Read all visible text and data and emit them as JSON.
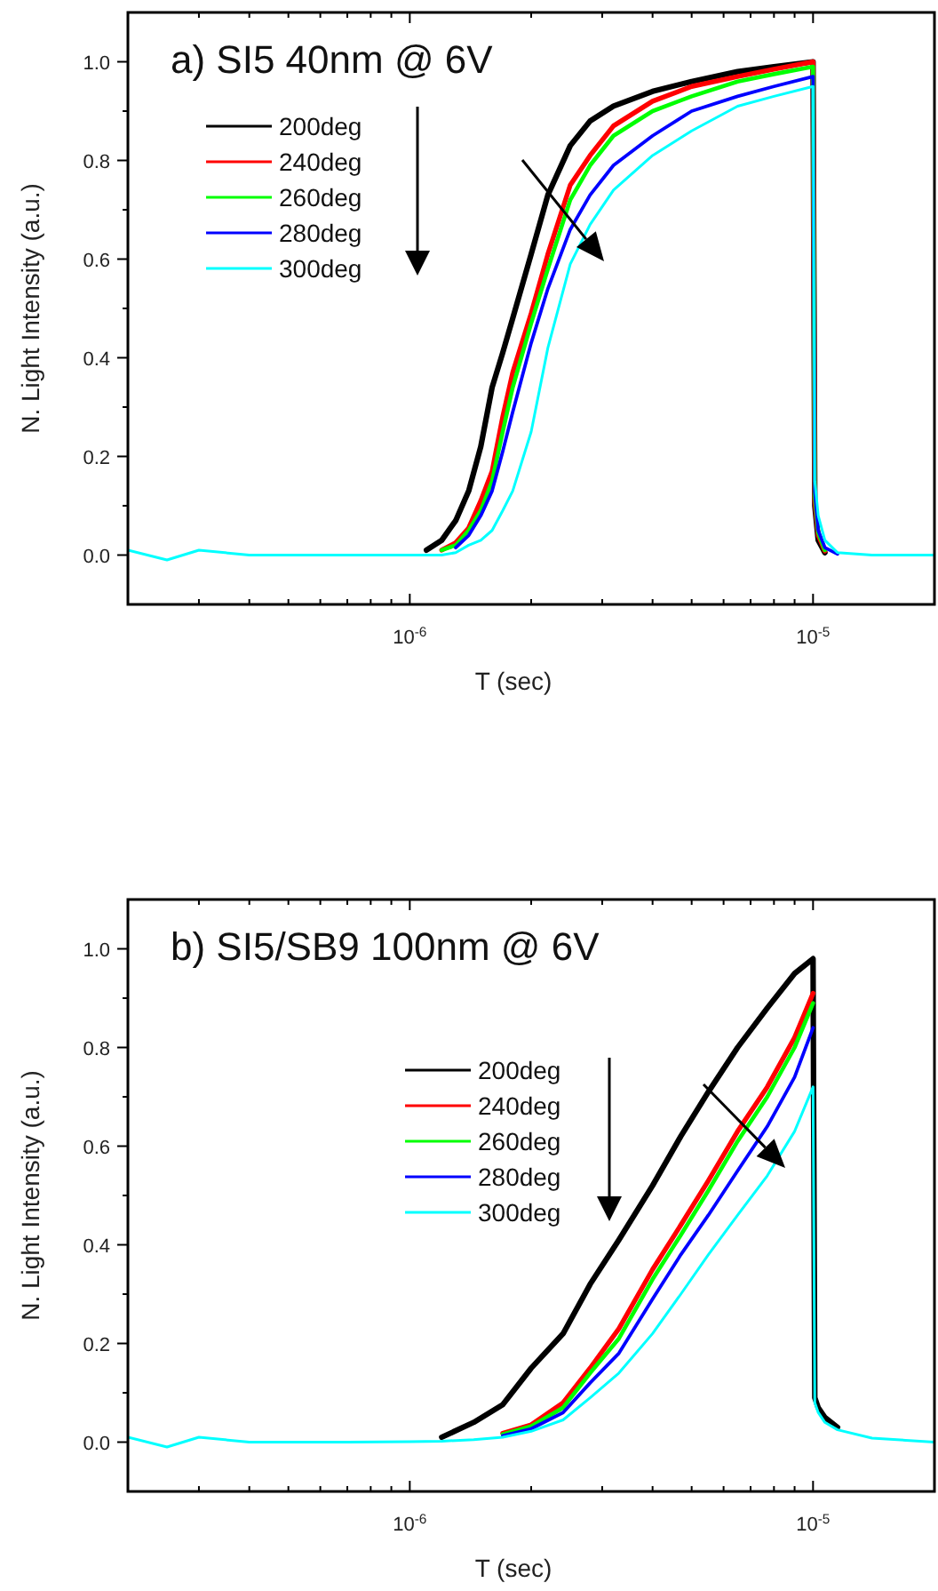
{
  "chart_data": [
    {
      "type": "line",
      "title": "a) SI5 40nm @ 6V",
      "xlabel": "T (sec)",
      "ylabel": "N. Light Intensity (a.u.)",
      "log": "x",
      "legend": "top left",
      "grid": false,
      "marker": "none",
      "line_style": "solid",
      "xlim": [
        2e-07,
        2e-05
      ],
      "ylim": [
        -0.1,
        1.1
      ],
      "xticks": [
        {
          "value": 3e-07,
          "label": null
        },
        {
          "value": 4e-07,
          "label": null
        },
        {
          "value": 5e-07,
          "label": null
        },
        {
          "value": 6e-07,
          "label": null
        },
        {
          "value": 7e-07,
          "label": null
        },
        {
          "value": 8e-07,
          "label": null
        },
        {
          "value": 9e-07,
          "label": null
        },
        {
          "value": 1e-06,
          "label": "10$^{-6}$"
        },
        {
          "value": 2e-06,
          "label": null
        },
        {
          "value": 3e-06,
          "label": null
        },
        {
          "value": 4e-06,
          "label": null
        },
        {
          "value": 5e-06,
          "label": null
        },
        {
          "value": 6e-06,
          "label": null
        },
        {
          "value": 7e-06,
          "label": null
        },
        {
          "value": 8e-06,
          "label": null
        },
        {
          "value": 9e-06,
          "label": null
        },
        {
          "value": 1e-05,
          "label": "10$^{-5}$"
        }
      ],
      "yticks": [
        {
          "value": 0,
          "label": "0.0"
        },
        {
          "value": 0.1,
          "label": null
        },
        {
          "value": 0.2,
          "label": "0.2"
        },
        {
          "value": 0.3,
          "label": null
        },
        {
          "value": 0.4,
          "label": "0.4"
        },
        {
          "value": 0.5,
          "label": null
        },
        {
          "value": 0.6,
          "label": "0.6"
        },
        {
          "value": 0.7,
          "label": null
        },
        {
          "value": 0.8,
          "label": "0.8"
        },
        {
          "value": 0.9,
          "label": null
        },
        {
          "value": 1,
          "label": "1.0"
        }
      ],
      "x": [
        2e-07,
        2.5e-07,
        3e-07,
        4e-07,
        5e-07,
        7e-07,
        1e-06,
        1.1e-06,
        1.2e-06,
        1.3e-06,
        1.4e-06,
        1.5e-06,
        1.6e-06,
        1.7e-06,
        1.8e-06,
        2e-06,
        2.2e-06,
        2.5e-06,
        2.8e-06,
        3.2e-06,
        4e-06,
        5e-06,
        6.5e-06,
        8e-06,
        1e-05,
        1.01e-05,
        1.03e-05,
        1.07e-05,
        1.15e-05,
        1.4e-05,
        2e-05
      ],
      "series": [
        {
          "name": "200deg",
          "color": "#000000",
          "values": [
            null,
            null,
            null,
            null,
            null,
            null,
            null,
            0.01,
            0.03,
            0.07,
            0.13,
            0.22,
            0.34,
            0.41,
            0.48,
            0.61,
            0.73,
            0.83,
            0.88,
            0.91,
            0.94,
            0.96,
            0.98,
            0.99,
            1.0,
            0.1,
            0.03,
            0.005,
            null,
            null,
            null
          ]
        },
        {
          "name": "240deg",
          "color": "#ff0000",
          "values": [
            null,
            null,
            null,
            null,
            null,
            null,
            null,
            null,
            0.01,
            0.025,
            0.055,
            0.11,
            0.17,
            0.28,
            0.37,
            0.49,
            0.61,
            0.75,
            0.81,
            0.87,
            0.92,
            0.95,
            0.97,
            0.985,
            1.0,
            0.11,
            0.04,
            0.008,
            null,
            null,
            null
          ]
        },
        {
          "name": "260deg",
          "color": "#00ff00",
          "values": [
            null,
            null,
            null,
            null,
            null,
            null,
            null,
            null,
            0.01,
            0.02,
            0.05,
            0.09,
            0.15,
            0.25,
            0.34,
            0.47,
            0.58,
            0.72,
            0.79,
            0.85,
            0.9,
            0.93,
            0.96,
            0.975,
            0.99,
            0.12,
            0.045,
            0.01,
            null,
            null,
            null
          ]
        },
        {
          "name": "280deg",
          "color": "#0000ff",
          "values": [
            null,
            null,
            null,
            null,
            null,
            null,
            null,
            null,
            null,
            0.015,
            0.04,
            0.08,
            0.13,
            0.21,
            0.29,
            0.43,
            0.54,
            0.66,
            0.73,
            0.79,
            0.85,
            0.9,
            0.93,
            0.95,
            0.97,
            0.13,
            0.05,
            0.015,
            0.002,
            null,
            null
          ]
        },
        {
          "name": "300deg",
          "color": "#00ffff",
          "values": [
            0.01,
            -0.01,
            0.01,
            0,
            0,
            0,
            0,
            0,
            0,
            0.005,
            0.02,
            0.03,
            0.05,
            0.09,
            0.13,
            0.25,
            0.42,
            0.59,
            0.67,
            0.74,
            0.81,
            0.86,
            0.91,
            0.93,
            0.95,
            0.15,
            0.08,
            0.03,
            0.005,
            0,
            0
          ]
        }
      ]
    },
    {
      "type": "line",
      "title": "b) SI5/SB9 100nm @ 6V",
      "xlabel": "T (sec)",
      "ylabel": "N. Light Intensity (a.u.)",
      "log": "x",
      "legend": "top",
      "grid": false,
      "marker": "none",
      "line_style": "solid",
      "xlim": [
        2e-07,
        2e-05
      ],
      "ylim": [
        -0.1,
        1.1
      ],
      "xticks": [
        {
          "value": 3e-07,
          "label": null
        },
        {
          "value": 4e-07,
          "label": null
        },
        {
          "value": 5e-07,
          "label": null
        },
        {
          "value": 6e-07,
          "label": null
        },
        {
          "value": 7e-07,
          "label": null
        },
        {
          "value": 8e-07,
          "label": null
        },
        {
          "value": 9e-07,
          "label": null
        },
        {
          "value": 1e-06,
          "label": "10$^{-6}$"
        },
        {
          "value": 2e-06,
          "label": null
        },
        {
          "value": 3e-06,
          "label": null
        },
        {
          "value": 4e-06,
          "label": null
        },
        {
          "value": 5e-06,
          "label": null
        },
        {
          "value": 6e-06,
          "label": null
        },
        {
          "value": 7e-06,
          "label": null
        },
        {
          "value": 8e-06,
          "label": null
        },
        {
          "value": 9e-06,
          "label": null
        },
        {
          "value": 1e-05,
          "label": "10$^{-5}$"
        }
      ],
      "yticks": [
        {
          "value": 0,
          "label": "0.0"
        },
        {
          "value": 0.1,
          "label": null
        },
        {
          "value": 0.2,
          "label": "0.2"
        },
        {
          "value": 0.3,
          "label": null
        },
        {
          "value": 0.4,
          "label": "0.4"
        },
        {
          "value": 0.5,
          "label": null
        },
        {
          "value": 0.6,
          "label": "0.6"
        },
        {
          "value": 0.7,
          "label": null
        },
        {
          "value": 0.8,
          "label": "0.8"
        },
        {
          "value": 0.9,
          "label": null
        },
        {
          "value": 1,
          "label": "1.0"
        }
      ],
      "x": [
        2e-07,
        2.5e-07,
        3e-07,
        4e-07,
        5e-07,
        7e-07,
        1e-06,
        1.2e-06,
        1.44e-06,
        1.7e-06,
        2e-06,
        2.4e-06,
        2.8e-06,
        3.3e-06,
        4e-06,
        4.7e-06,
        5.5e-06,
        6.5e-06,
        7.7e-06,
        9e-06,
        1e-05,
        1.01e-05,
        1.03e-05,
        1.07e-05,
        1.15e-05,
        1.4e-05,
        2e-05
      ],
      "series": [
        {
          "name": "200deg",
          "color": "#000000",
          "values": [
            null,
            null,
            null,
            null,
            null,
            null,
            null,
            0.01,
            0.04,
            0.076,
            0.15,
            0.22,
            0.32,
            0.41,
            0.52,
            0.62,
            0.71,
            0.8,
            0.88,
            0.95,
            0.98,
            0.09,
            0.07,
            0.05,
            0.03,
            null,
            null
          ]
        },
        {
          "name": "240deg",
          "color": "#ff0000",
          "values": [
            null,
            null,
            null,
            null,
            null,
            null,
            null,
            null,
            null,
            0.018,
            0.035,
            0.08,
            0.15,
            0.23,
            0.35,
            0.44,
            0.53,
            0.63,
            0.72,
            0.82,
            0.91,
            null,
            null,
            null,
            null,
            null,
            null
          ]
        },
        {
          "name": "260deg",
          "color": "#00ff00",
          "values": [
            null,
            null,
            null,
            null,
            null,
            null,
            null,
            null,
            null,
            0.016,
            0.032,
            0.07,
            0.14,
            0.21,
            0.33,
            0.42,
            0.51,
            0.61,
            0.7,
            0.8,
            0.89,
            null,
            null,
            null,
            null,
            null,
            null
          ]
        },
        {
          "name": "280deg",
          "color": "#0000ff",
          "values": [
            null,
            null,
            null,
            null,
            null,
            null,
            null,
            null,
            null,
            0.013,
            0.027,
            0.06,
            0.12,
            0.18,
            0.29,
            0.38,
            0.46,
            0.55,
            0.64,
            0.74,
            0.84,
            null,
            null,
            null,
            null,
            null,
            null
          ]
        },
        {
          "name": "300deg",
          "color": "#00ffff",
          "values": [
            0.01,
            -0.01,
            0.01,
            0,
            0,
            0,
            0.001,
            0.002,
            0.005,
            0.01,
            0.022,
            0.045,
            0.09,
            0.14,
            0.22,
            0.3,
            0.38,
            0.46,
            0.54,
            0.63,
            0.72,
            0.08,
            0.06,
            0.04,
            0.025,
            0.008,
            0
          ]
        }
      ]
    }
  ]
}
